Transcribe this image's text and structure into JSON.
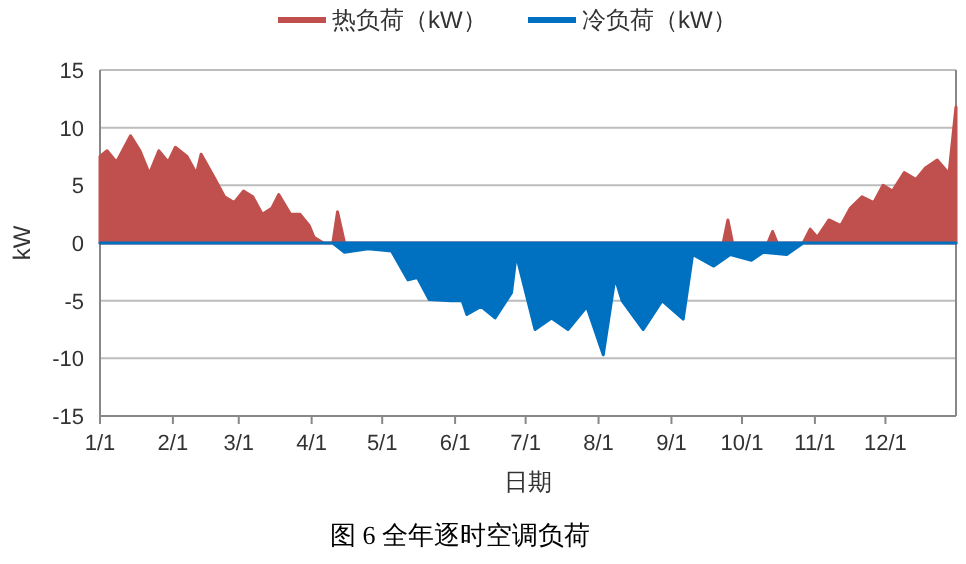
{
  "chart_data": {
    "type": "area",
    "xlabel": "日期",
    "ylabel": "kW",
    "annotations": [
      "图 6 全年逐时空调负荷"
    ],
    "xlim": [
      "--01-01",
      "--12-31"
    ],
    "xticks": [
      {
        "value": "--01-01",
        "label": "1/1"
      },
      {
        "value": "--02-01",
        "label": "2/1"
      },
      {
        "value": "--03-01",
        "label": "3/1"
      },
      {
        "value": "--04-01",
        "label": "4/1"
      },
      {
        "value": "--05-01",
        "label": "5/1"
      },
      {
        "value": "--06-01",
        "label": "6/1"
      },
      {
        "value": "--07-01",
        "label": "7/1"
      },
      {
        "value": "--08-01",
        "label": "8/1"
      },
      {
        "value": "--09-01",
        "label": "9/1"
      },
      {
        "value": "--10-01",
        "label": "10/1"
      },
      {
        "value": "--11-01",
        "label": "11/1"
      },
      {
        "value": "--12-01",
        "label": "12/1"
      }
    ],
    "ylim": [
      -15,
      15
    ],
    "yticks": [
      -15,
      -10,
      -5,
      0,
      5,
      10,
      15
    ],
    "grid": "y",
    "legend": "top",
    "series": [
      {
        "name": "热负荷（kW）",
        "color": "#c0504d",
        "x": [
          "--01-01",
          "--01-04",
          "--01-08",
          "--01-14",
          "--01-18",
          "--01-22",
          "--01-26",
          "--01-30",
          "--02-02",
          "--02-07",
          "--02-11",
          "--02-13",
          "--02-19",
          "--02-23",
          "--02-27",
          "--03-03",
          "--03-07",
          "--03-11",
          "--03-15",
          "--03-18",
          "--03-23",
          "--03-27",
          "--03-31",
          "--04-02",
          "--04-06",
          "--04-10",
          "--04-12",
          "--04-15",
          "--05-10",
          "--07-19",
          "--09-23",
          "--09-25",
          "--09-27",
          "--10-12",
          "--10-14",
          "--10-16",
          "--10-27",
          "--10-30",
          "--11-02",
          "--11-07",
          "--11-12",
          "--11-16",
          "--11-21",
          "--11-26",
          "--11-30",
          "--12-04",
          "--12-09",
          "--12-14",
          "--12-18",
          "--12-23",
          "--12-28",
          "--12-31"
        ],
        "values": [
          7.5,
          8,
          7,
          9.3,
          8,
          6,
          8,
          7,
          8.3,
          7.5,
          6,
          7.7,
          5.5,
          4,
          3.5,
          4.5,
          4,
          2.5,
          3,
          4.2,
          2.5,
          2.5,
          1.5,
          0.5,
          0,
          0,
          2.7,
          0,
          0,
          0,
          0,
          2,
          0,
          0,
          1,
          0,
          0,
          1.2,
          0.5,
          2,
          1.5,
          3,
          4,
          3.5,
          5,
          4.5,
          6.1,
          5.5,
          6.5,
          7.2,
          6,
          11.8
        ]
      },
      {
        "name": "冷负荷（kW）",
        "color": "#0070c0",
        "x": [
          "--01-01",
          "--04-10",
          "--04-15",
          "--04-25",
          "--05-05",
          "--05-12",
          "--05-16",
          "--05-21",
          "--05-30",
          "--06-04",
          "--06-06",
          "--06-12",
          "--06-18",
          "--06-25",
          "--06-27",
          "--07-05",
          "--07-12",
          "--07-19",
          "--07-27",
          "--08-03",
          "--08-08",
          "--08-11",
          "--08-20",
          "--08-28",
          "--09-06",
          "--09-10",
          "--09-19",
          "--09-26",
          "--10-05",
          "--10-10",
          "--10-20",
          "--10-27",
          "--12-31"
        ],
        "values": [
          0,
          0,
          -0.8,
          -0.5,
          -0.7,
          -3.2,
          -3,
          -4.9,
          -5,
          -5,
          -6.2,
          -5.5,
          -6.5,
          -4.3,
          -1,
          -7.5,
          -6.5,
          -7.5,
          -5.5,
          -9.7,
          -3,
          -5,
          -7.5,
          -5,
          -6.6,
          -1,
          -2,
          -1,
          -1.5,
          -0.8,
          -1,
          0,
          0
        ]
      }
    ]
  }
}
